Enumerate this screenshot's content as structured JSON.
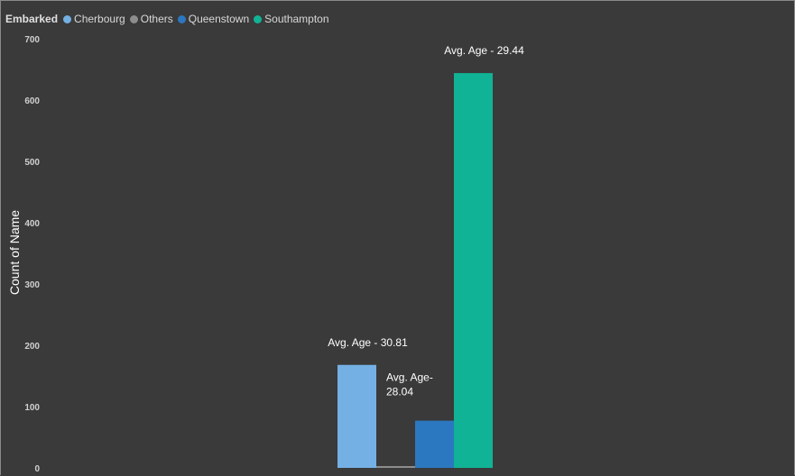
{
  "legend": {
    "title": "Embarked",
    "items": [
      {
        "label": "Cherbourg",
        "color": "#74b0e4"
      },
      {
        "label": "Others",
        "color": "#8d8d8d"
      },
      {
        "label": "Queenstown",
        "color": "#2b78c0"
      },
      {
        "label": "Southampton",
        "color": "#10b396"
      }
    ]
  },
  "chart_data": {
    "type": "bar",
    "categories": [
      "Cherbourg",
      "Others",
      "Queenstown",
      "Southampton"
    ],
    "values": [
      168,
      2,
      77,
      644
    ],
    "colors": [
      "#74b0e4",
      "#8d8d8d",
      "#2b78c0",
      "#10b396"
    ],
    "ylabel": "Count of Name",
    "xlabel": "",
    "ylim": [
      0,
      700
    ],
    "yticks": [
      "0",
      "100",
      "200",
      "300",
      "400",
      "500",
      "600",
      "700"
    ],
    "grid": false,
    "legend_position": "top-left",
    "data_labels": [
      {
        "series": "Cherbourg",
        "lines": [
          "Avg. Age - 30.81"
        ]
      },
      {
        "series": "Queenstown",
        "lines": [
          "Avg. Age-",
          "28.04"
        ]
      },
      {
        "series": "Southampton",
        "lines": [
          "Avg. Age - 29.44"
        ]
      }
    ]
  }
}
